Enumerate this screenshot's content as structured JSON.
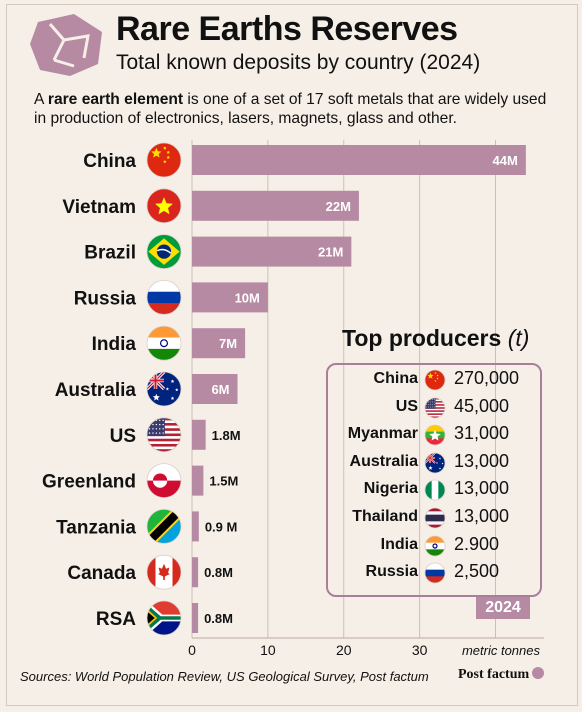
{
  "header": {
    "title": "Rare Earths Reserves",
    "subtitle": "Total known deposits by country (2024)",
    "intro_prefix": "A ",
    "intro_bold": "rare earth element",
    "intro_rest": " is one of a set of 17 soft metals that are widely used in production of electronics, lasers, magnets, glass and other."
  },
  "colors": {
    "background": "#f6efe7",
    "bar": "#b78aa4",
    "accent": "#a87f98",
    "text": "#111111"
  },
  "chart_data": {
    "type": "bar",
    "orientation": "horizontal",
    "categories": [
      "China",
      "Vietnam",
      "Brazil",
      "Russia",
      "India",
      "Australia",
      "US",
      "Greenland",
      "Tanzania",
      "Canada",
      "RSA"
    ],
    "values": [
      44,
      22,
      21,
      10,
      7,
      6,
      1.8,
      1.5,
      0.9,
      0.8,
      0.8
    ],
    "value_labels": [
      "44M",
      "22M",
      "21M",
      "10M",
      "7M",
      "6M",
      "1.8M",
      "1.5M",
      "0.9 M",
      "0.8M",
      "0.8M"
    ],
    "flags": [
      "flag-china",
      "flag-vietnam",
      "flag-brazil",
      "flag-russia",
      "flag-india",
      "flag-australia",
      "flag-us",
      "flag-greenland",
      "flag-tanzania",
      "flag-canada",
      "flag-south-africa"
    ],
    "xticks": [
      0,
      10,
      20,
      30
    ],
    "xtick_labels": [
      "0",
      "10",
      "20",
      "30"
    ],
    "xlim": [
      0,
      45
    ],
    "unit_label": "metric tonnes",
    "grid": true,
    "xlabel": "",
    "ylabel": ""
  },
  "producers": {
    "title": "Top producers",
    "title_unit": "(t)",
    "year_badge": "2024",
    "rows": [
      {
        "country": "China",
        "flag": "flag-china",
        "value": "270,000"
      },
      {
        "country": "US",
        "flag": "flag-us",
        "value": "45,000"
      },
      {
        "country": "Myanmar",
        "flag": "flag-myanmar",
        "value": "31,000"
      },
      {
        "country": "Australia",
        "flag": "flag-australia",
        "value": "13,000"
      },
      {
        "country": "Nigeria",
        "flag": "flag-nigeria",
        "value": "13,000"
      },
      {
        "country": "Thailand",
        "flag": "flag-thailand",
        "value": "13,000"
      },
      {
        "country": "India",
        "flag": "flag-india",
        "value": "2.900"
      },
      {
        "country": "Russia",
        "flag": "flag-russia",
        "value": "2,500"
      }
    ]
  },
  "footer": {
    "sources": "Sources: World Population Review, US Geological Survey, Post factum",
    "brand": "Post factum"
  }
}
